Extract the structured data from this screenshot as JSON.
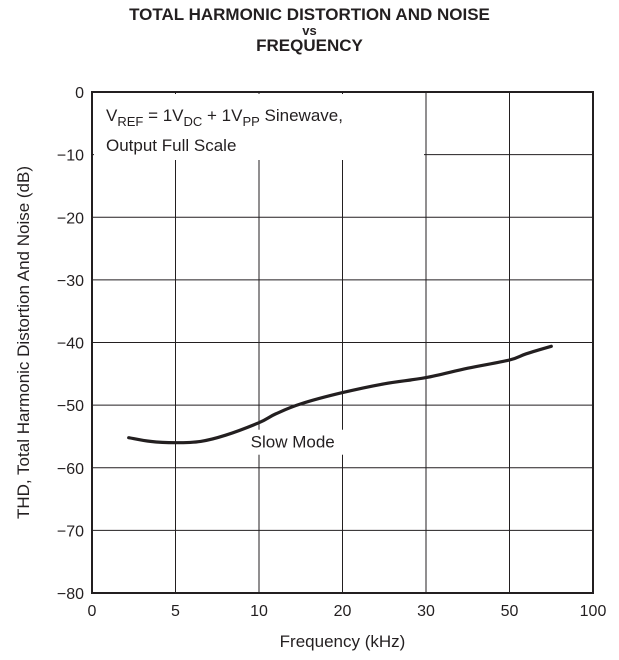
{
  "chart_data": {
    "type": "line",
    "title_line1": "TOTAL HARMONIC DISTORTION AND NOISE",
    "title_line2": "vs",
    "title_line3": "FREQUENCY",
    "xlabel": "Frequency (kHz)",
    "ylabel": "THD, Total Harmonic Distortion And Noise (dB)",
    "x_ticks": [
      "0",
      "5",
      "10",
      "20",
      "30",
      "50",
      "100"
    ],
    "y_ticks": [
      "0",
      "−10",
      "−20",
      "−30",
      "−40",
      "−50",
      "−60",
      "−70",
      "−80"
    ],
    "ylim": [
      -80,
      0
    ],
    "grid": true,
    "annotation": {
      "line1_v": "V",
      "line1_sub1": "REF",
      "line1_mid": " = 1V",
      "line1_sub2": "DC",
      "line1_mid2": " + 1V",
      "line1_sub3": "PP",
      "line1_end": " Sinewave,",
      "line2": "Output Full Scale"
    },
    "series": [
      {
        "name": "Slow Mode",
        "x": [
          2.2,
          3.5,
          5,
          6.5,
          8,
          10,
          12,
          15,
          20,
          25,
          30,
          40,
          50,
          60,
          75
        ],
        "y": [
          -55.2,
          -55.8,
          -56.0,
          -55.8,
          -54.8,
          -52.8,
          -51.4,
          -49.8,
          -48.0,
          -46.6,
          -45.6,
          -44.1,
          -42.8,
          -41.8,
          -40.6
        ]
      }
    ]
  }
}
